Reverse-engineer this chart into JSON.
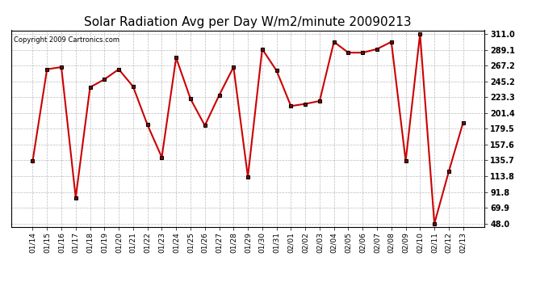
{
  "title": "Solar Radiation Avg per Day W/m2/minute 20090213",
  "copyright": "Copyright 2009 Cartronics.com",
  "dates": [
    "01/14",
    "01/15",
    "01/16",
    "01/17",
    "01/18",
    "01/19",
    "01/20",
    "01/21",
    "01/22",
    "01/23",
    "01/24",
    "01/25",
    "01/26",
    "01/27",
    "01/28",
    "01/29",
    "01/30",
    "01/31",
    "02/01",
    "02/02",
    "02/03",
    "02/04",
    "02/05",
    "02/06",
    "02/07",
    "02/08",
    "02/09",
    "02/10",
    "02/11",
    "02/12",
    "02/13"
  ],
  "values": [
    135.0,
    262.0,
    265.0,
    84.0,
    237.0,
    248.0,
    262.0,
    238.0,
    185.0,
    140.0,
    278.0,
    221.0,
    184.0,
    226.0,
    265.0,
    113.0,
    290.0,
    260.0,
    211.0,
    214.0,
    218.0,
    300.0,
    285.0,
    285.0,
    290.0,
    300.0,
    135.0,
    311.0,
    48.0,
    120.0,
    188.0
  ],
  "line_color": "#cc0000",
  "marker_color": "#880000",
  "bg_color": "#ffffff",
  "grid_color": "#aaaaaa",
  "title_fontsize": 11,
  "yticks": [
    48.0,
    69.9,
    91.8,
    113.8,
    135.7,
    157.6,
    179.5,
    201.4,
    223.3,
    245.2,
    267.2,
    289.1,
    311.0
  ],
  "ymin": 48.0,
  "ymax": 311.0,
  "font_family": "sans-serif"
}
